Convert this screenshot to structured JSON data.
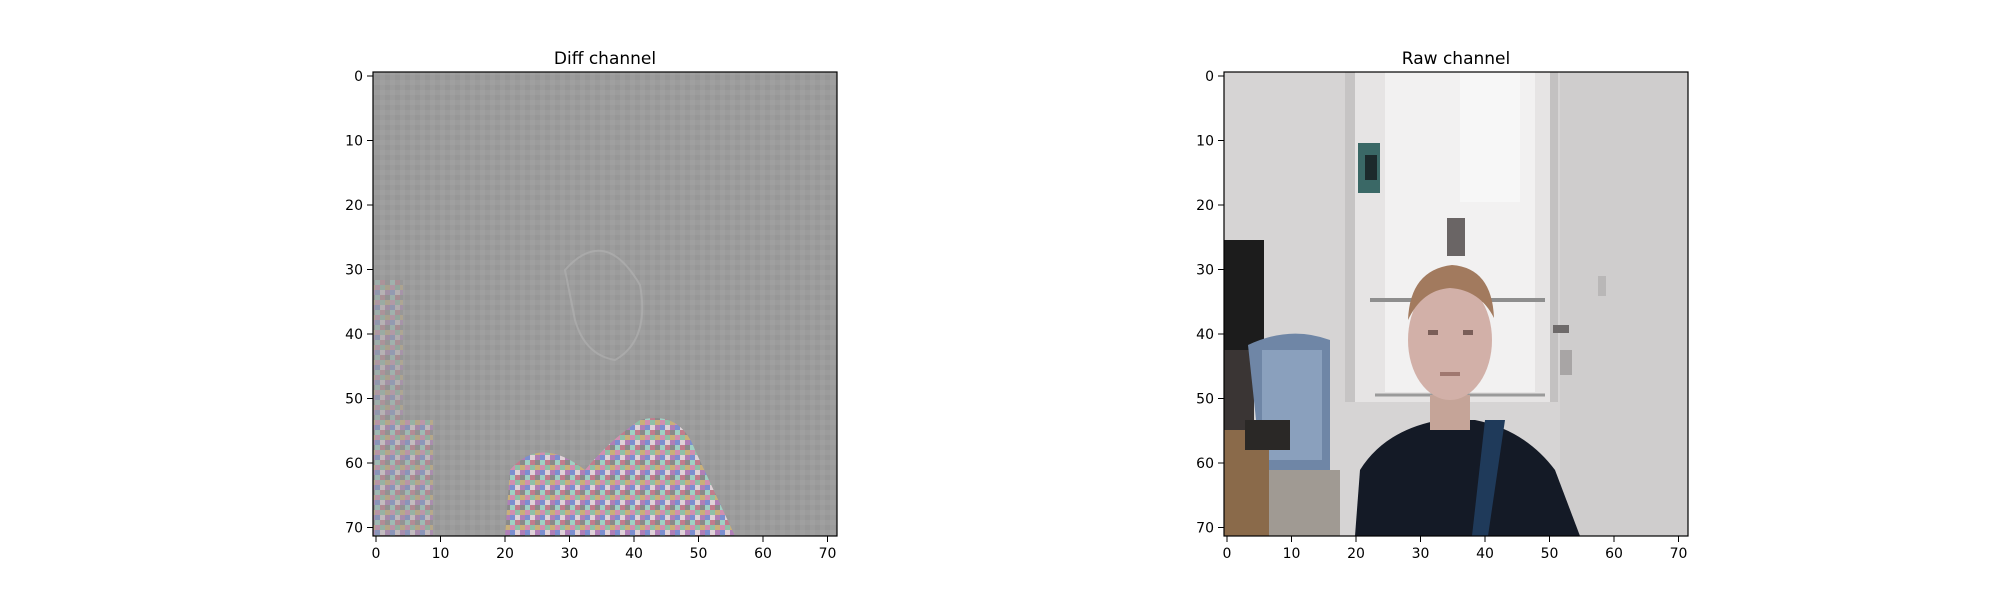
{
  "panels": [
    {
      "title": "Diff channel",
      "x_ticks": [
        "0",
        "10",
        "20",
        "30",
        "40",
        "50",
        "60",
        "70"
      ],
      "y_ticks": [
        "0",
        "10",
        "20",
        "30",
        "40",
        "50",
        "60",
        "70"
      ],
      "image": "noisy grey difference map with colored speckle around a head-and-shoulders silhouette at bottom center"
    },
    {
      "title": "Raw channel",
      "x_ticks": [
        "0",
        "10",
        "20",
        "30",
        "40",
        "50",
        "60",
        "70"
      ],
      "y_ticks": [
        "0",
        "10",
        "20",
        "30",
        "40",
        "50",
        "60",
        "70"
      ],
      "image": "low-resolution camera frame of a young man in a dark shirt in front of a white door, with a chair and dark cabinet at left"
    }
  ],
  "colors": {
    "diff_background": "#9c9c9c",
    "wall": "#d6d4d4",
    "shirt": "#141a26"
  }
}
